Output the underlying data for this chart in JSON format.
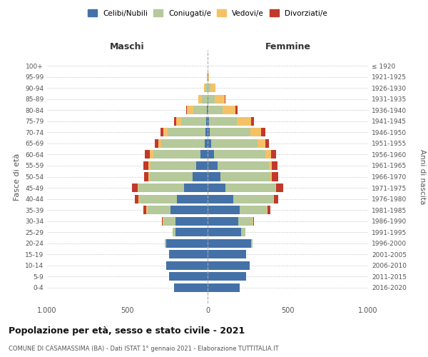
{
  "age_groups": [
    "0-4",
    "5-9",
    "10-14",
    "15-19",
    "20-24",
    "25-29",
    "30-34",
    "35-39",
    "40-44",
    "45-49",
    "50-54",
    "55-59",
    "60-64",
    "65-69",
    "70-74",
    "75-79",
    "80-84",
    "85-89",
    "90-94",
    "95-99",
    "100+"
  ],
  "birth_years": [
    "2016-2020",
    "2011-2015",
    "2006-2010",
    "2001-2005",
    "1996-2000",
    "1991-1995",
    "1986-1990",
    "1981-1985",
    "1976-1980",
    "1971-1975",
    "1966-1970",
    "1961-1965",
    "1956-1960",
    "1951-1955",
    "1946-1950",
    "1941-1945",
    "1936-1940",
    "1931-1935",
    "1926-1930",
    "1921-1925",
    "≤ 1920"
  ],
  "males_celibi": [
    210,
    240,
    260,
    240,
    260,
    200,
    200,
    230,
    190,
    145,
    95,
    70,
    45,
    18,
    15,
    8,
    5,
    2,
    0,
    0,
    0
  ],
  "males_coniugati": [
    0,
    0,
    0,
    0,
    8,
    18,
    75,
    145,
    235,
    285,
    265,
    285,
    295,
    270,
    235,
    155,
    85,
    35,
    12,
    3,
    0
  ],
  "males_vedovi": [
    0,
    0,
    0,
    0,
    0,
    0,
    4,
    7,
    7,
    7,
    7,
    12,
    18,
    18,
    27,
    32,
    38,
    22,
    12,
    2,
    0
  ],
  "males_divorziati": [
    0,
    0,
    0,
    0,
    0,
    0,
    6,
    18,
    22,
    32,
    27,
    32,
    32,
    22,
    18,
    12,
    6,
    0,
    0,
    0,
    0
  ],
  "females_nubili": [
    200,
    240,
    260,
    240,
    270,
    210,
    190,
    200,
    160,
    110,
    80,
    60,
    40,
    20,
    15,
    10,
    5,
    5,
    2,
    0,
    0
  ],
  "females_coniugate": [
    0,
    0,
    0,
    0,
    10,
    25,
    90,
    170,
    250,
    310,
    310,
    320,
    320,
    290,
    250,
    170,
    90,
    40,
    15,
    2,
    0
  ],
  "females_vedove": [
    0,
    0,
    0,
    0,
    0,
    0,
    3,
    5,
    5,
    5,
    10,
    20,
    35,
    50,
    70,
    90,
    80,
    60,
    30,
    5,
    0
  ],
  "females_divorziate": [
    0,
    0,
    0,
    0,
    0,
    0,
    5,
    15,
    25,
    45,
    40,
    35,
    30,
    20,
    25,
    20,
    10,
    5,
    0,
    0,
    0
  ],
  "colors": {
    "celibi_nubili": "#4472a8",
    "coniugati": "#b5c99a",
    "vedovi": "#f5c167",
    "divorziati": "#c0392b"
  },
  "xlim": 1000,
  "title": "Popolazione per età, sesso e stato civile - 2021",
  "subtitle": "COMUNE DI CASAMASSIMA (BA) - Dati ISTAT 1° gennaio 2021 - Elaborazione TUTTITALIA.IT",
  "ylabel_left": "Fasce di età",
  "ylabel_right": "Anni di nascita",
  "xlabel_left": "Maschi",
  "xlabel_right": "Femmine",
  "background_color": "#ffffff",
  "grid_color": "#cccccc"
}
